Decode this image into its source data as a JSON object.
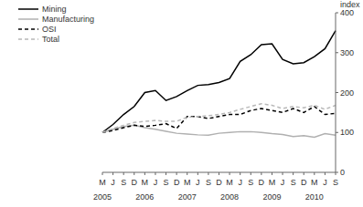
{
  "chart_data": {
    "type": "line",
    "y_label": "index",
    "categories": [
      "M",
      "J",
      "S",
      "D",
      "M",
      "J",
      "S",
      "D",
      "M",
      "J",
      "S",
      "D",
      "M",
      "J",
      "S",
      "D",
      "M",
      "J",
      "S",
      "D",
      "M",
      "J",
      "S"
    ],
    "years": [
      "2005",
      "2006",
      "2007",
      "2008",
      "2009",
      "2010"
    ],
    "ylim": [
      0,
      400
    ],
    "yticks": [
      0,
      100,
      200,
      300,
      400
    ],
    "grid": false,
    "legend": "upper left",
    "series": [
      {
        "name": "Mining",
        "color": "#000000",
        "line_style": "solid",
        "values": [
          100,
          120,
          145,
          165,
          200,
          205,
          180,
          190,
          205,
          218,
          220,
          225,
          235,
          278,
          295,
          320,
          322,
          283,
          272,
          275,
          290,
          310,
          355
        ]
      },
      {
        "name": "Manufacturing",
        "color": "#b0b0b0",
        "line_style": "solid",
        "values": [
          100,
          108,
          115,
          118,
          112,
          108,
          103,
          98,
          96,
          94,
          93,
          98,
          100,
          102,
          102,
          100,
          97,
          95,
          90,
          92,
          88,
          97,
          93
        ]
      },
      {
        "name": "OSI",
        "color": "#000000",
        "line_style": "dashed",
        "values": [
          100,
          105,
          112,
          118,
          115,
          118,
          122,
          110,
          140,
          140,
          135,
          140,
          145,
          145,
          155,
          160,
          155,
          150,
          160,
          150,
          165,
          145,
          148
        ]
      },
      {
        "name": "Total",
        "color": "#b8b8b8",
        "line_style": "dashed",
        "values": [
          100,
          110,
          118,
          125,
          128,
          130,
          128,
          128,
          138,
          140,
          142,
          145,
          150,
          158,
          165,
          172,
          168,
          160,
          165,
          162,
          168,
          158,
          168
        ]
      }
    ]
  }
}
